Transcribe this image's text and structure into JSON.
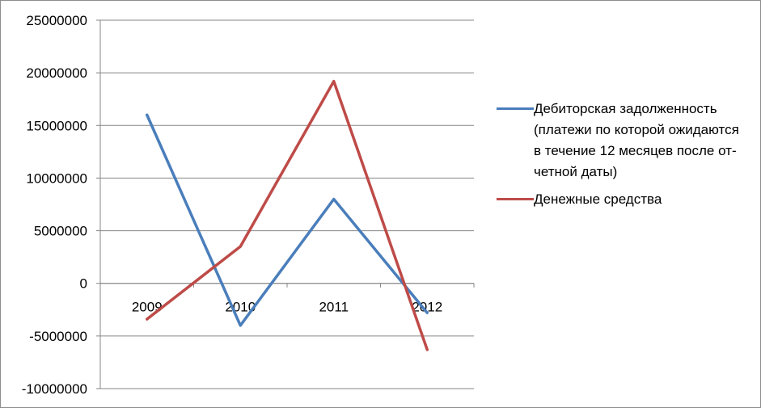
{
  "chart_data": {
    "type": "line",
    "categories": [
      "2009",
      "2010",
      "2011",
      "2012"
    ],
    "yticks": [
      "25000000",
      "20000000",
      "15000000",
      "10000000",
      "5000000",
      "0",
      "-5000000",
      "-10000000"
    ],
    "ylim": [
      -10000000,
      25000000
    ],
    "grid": true,
    "legend_position": "right",
    "series": [
      {
        "name": "Дебиторская задолженность (платежи по которой ожидаются в течение 12 месяцев после от- четной даты)",
        "color": "#4a7ebb",
        "values": [
          16000000,
          -4000000,
          8000000,
          -2800000
        ]
      },
      {
        "name": "Денежные средства",
        "color": "#be4b48",
        "values": [
          -3400000,
          3500000,
          19200000,
          -6300000
        ]
      }
    ]
  }
}
